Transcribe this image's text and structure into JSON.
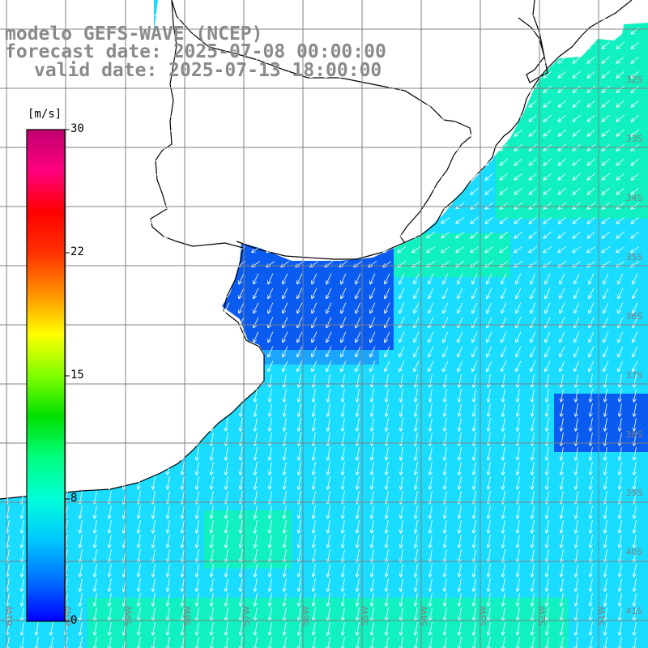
{
  "title": {
    "model": "modelo GEFS-WAVE (NCEP)",
    "forecast": "forecast date: 2025-07-08 00:00:00",
    "valid": "valid date: 2025-07-13 18:00:00"
  },
  "colorbar": {
    "unit": "[m/s]",
    "ticks": [
      "30",
      "22",
      "15",
      "8",
      "0"
    ],
    "colors": [
      "#0000ff",
      "#0070ff",
      "#00c8ff",
      "#00ffd8",
      "#00ff80",
      "#00e000",
      "#80ff00",
      "#ffff00",
      "#ff9000",
      "#ff3000",
      "#ff0000",
      "#ff0080",
      "#c00070"
    ]
  },
  "grid": {
    "lat_labels": [
      "32S",
      "33S",
      "34S",
      "35S",
      "36S",
      "37S",
      "38S",
      "39S",
      "40S",
      "41S"
    ],
    "lon_labels": [
      "61W",
      "60W",
      "59W",
      "58W",
      "57W",
      "56W",
      "55W",
      "54W",
      "53W",
      "52W",
      "51W"
    ]
  },
  "colors": {
    "land": "#ffffff",
    "coast": "#000000",
    "grid": "#808080",
    "arrow": "#ffffff",
    "title": "#8a8a8a",
    "sea_base": "#19dcff",
    "sea_dark": "#0a5cf0",
    "sea_mid": "#1aa6ff",
    "sea_green": "#10f0c0"
  }
}
